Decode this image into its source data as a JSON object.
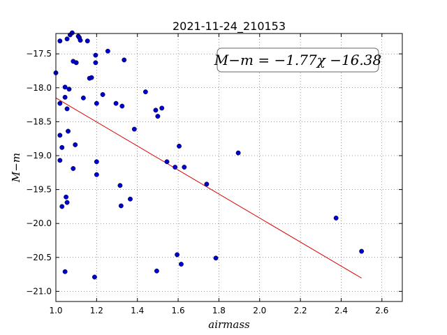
{
  "chart_data": {
    "type": "scatter",
    "title": "2021-11-24_210153",
    "xlabel": "airmass",
    "ylabel": "M−m",
    "xlim": [
      1.0,
      2.7
    ],
    "ylim": [
      -21.15,
      -17.2
    ],
    "xticks": [
      1.0,
      1.2,
      1.4,
      1.6,
      1.8,
      2.0,
      2.2,
      2.4,
      2.6
    ],
    "xtick_labels": [
      "1.0",
      "1.2",
      "1.4",
      "1.6",
      "1.8",
      "2.0",
      "2.2",
      "2.4",
      "2.6"
    ],
    "yticks": [
      -17.5,
      -18.0,
      -18.5,
      -19.0,
      -19.5,
      -20.0,
      -20.5,
      -21.0
    ],
    "ytick_labels": [
      "−17.5",
      "−18.0",
      "−18.5",
      "−19.0",
      "−19.5",
      "−20.0",
      "−20.5",
      "−21.0"
    ],
    "grid": true,
    "annotation": "M−m = −1.77χ −16.38",
    "fit_line": {
      "slope": -1.77,
      "intercept": -16.38,
      "x_range": [
        1.0,
        2.5
      ]
    },
    "colors": {
      "points": "#0000cc",
      "fit": "#dd0000"
    },
    "points": [
      [
        1.0,
        -17.78
      ],
      [
        1.02,
        -17.31
      ],
      [
        1.055,
        -17.28
      ],
      [
        1.07,
        -17.22
      ],
      [
        1.08,
        -17.19
      ],
      [
        1.11,
        -17.24
      ],
      [
        1.115,
        -17.26
      ],
      [
        1.12,
        -17.3
      ],
      [
        1.155,
        -17.31
      ],
      [
        1.085,
        -17.61
      ],
      [
        1.1,
        -17.63
      ],
      [
        1.195,
        -17.52
      ],
      [
        1.195,
        -17.63
      ],
      [
        1.255,
        -17.46
      ],
      [
        1.335,
        -17.59
      ],
      [
        1.045,
        -17.99
      ],
      [
        1.065,
        -18.02
      ],
      [
        1.165,
        -17.86
      ],
      [
        1.175,
        -17.85
      ],
      [
        1.02,
        -18.23
      ],
      [
        1.045,
        -18.14
      ],
      [
        1.055,
        -18.31
      ],
      [
        1.135,
        -18.15
      ],
      [
        1.2,
        -18.23
      ],
      [
        1.23,
        -18.1
      ],
      [
        1.295,
        -18.23
      ],
      [
        1.325,
        -18.27
      ],
      [
        1.44,
        -18.06
      ],
      [
        1.49,
        -18.33
      ],
      [
        1.5,
        -18.42
      ],
      [
        1.52,
        -18.3
      ],
      [
        1.02,
        -18.7
      ],
      [
        1.06,
        -18.64
      ],
      [
        1.03,
        -18.88
      ],
      [
        1.095,
        -18.84
      ],
      [
        1.385,
        -18.61
      ],
      [
        1.605,
        -18.86
      ],
      [
        1.895,
        -18.96
      ],
      [
        1.02,
        -19.07
      ],
      [
        1.085,
        -19.19
      ],
      [
        1.2,
        -19.09
      ],
      [
        1.2,
        -19.28
      ],
      [
        1.545,
        -19.09
      ],
      [
        1.585,
        -19.17
      ],
      [
        1.63,
        -19.17
      ],
      [
        1.74,
        -19.42
      ],
      [
        1.315,
        -19.44
      ],
      [
        1.05,
        -19.61
      ],
      [
        1.055,
        -19.69
      ],
      [
        1.03,
        -19.75
      ],
      [
        1.32,
        -19.74
      ],
      [
        1.365,
        -19.64
      ],
      [
        2.375,
        -19.92
      ],
      [
        2.5,
        -20.41
      ],
      [
        1.595,
        -20.46
      ],
      [
        1.615,
        -20.6
      ],
      [
        1.785,
        -20.51
      ],
      [
        1.045,
        -20.71
      ],
      [
        1.495,
        -20.7
      ],
      [
        1.19,
        -20.79
      ]
    ]
  }
}
